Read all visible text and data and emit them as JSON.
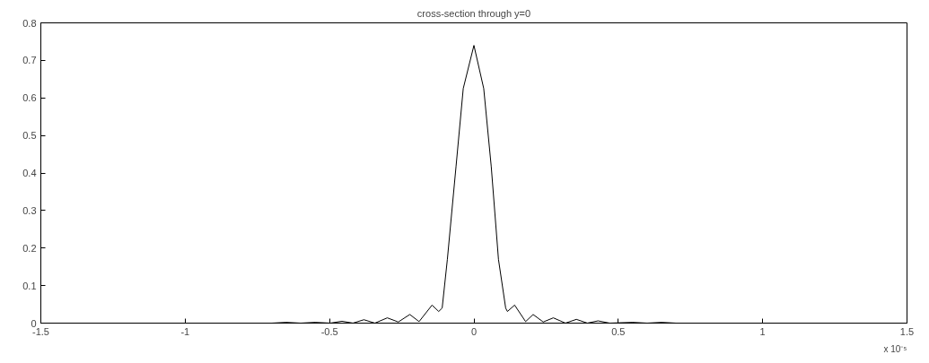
{
  "chart_data": {
    "type": "line",
    "title": "cross-section through y=0",
    "annotations": [
      "x 10⁻⁵"
    ],
    "xlim": [
      -1.5,
      1.5
    ],
    "ylim": [
      0,
      0.8
    ],
    "xticks": [
      -1.5,
      -1,
      -0.5,
      0,
      0.5,
      1,
      1.5
    ],
    "yticks": [
      0,
      0.1,
      0.2,
      0.3,
      0.4,
      0.5,
      0.6,
      0.7,
      0.8
    ],
    "grid": false,
    "marker": "none",
    "line_style": "solid",
    "series": [
      {
        "color": "#000000",
        "x": [
          -1.1,
          -0.9,
          -0.7,
          -0.65,
          -0.6,
          -0.55,
          -0.497,
          -0.457,
          -0.419,
          -0.381,
          -0.343,
          -0.3,
          -0.262,
          -0.222,
          -0.19,
          -0.145,
          -0.122,
          -0.11,
          -0.092,
          -0.062,
          -0.037,
          0,
          0.034,
          0.06,
          0.085,
          0.11,
          0.116,
          0.141,
          0.179,
          0.205,
          0.24,
          0.275,
          0.317,
          0.355,
          0.393,
          0.43,
          0.47,
          0.55,
          0.6,
          0.65,
          0.7,
          0.9,
          1.1
        ],
        "values": [
          0,
          0,
          0,
          0.002,
          0,
          0.002,
          0,
          0.005,
          0,
          0.009,
          0,
          0.014,
          0.003,
          0.023,
          0.004,
          0.048,
          0.031,
          0.04,
          0.17,
          0.417,
          0.625,
          0.74,
          0.625,
          0.417,
          0.17,
          0.04,
          0.031,
          0.048,
          0.004,
          0.023,
          0.003,
          0.014,
          0,
          0.01,
          0,
          0.006,
          0,
          0.002,
          0,
          0.002,
          0,
          0,
          0
        ]
      }
    ]
  }
}
